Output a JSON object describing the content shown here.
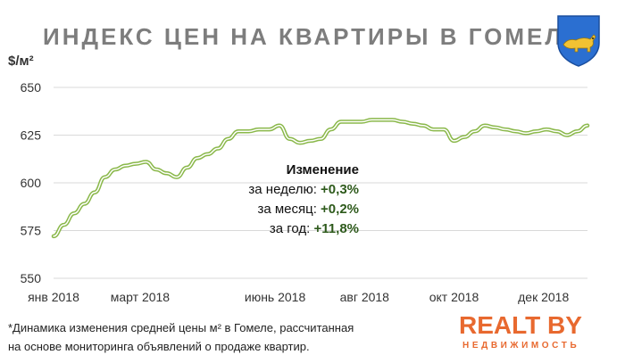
{
  "title": "ИНДЕКС ЦЕН НА КВАРТИРЫ В ГОМЕЛЕ",
  "y_unit": "$/м²",
  "annotation": {
    "heading": "Изменение",
    "rows": [
      {
        "label": "за неделю:",
        "value": "+0,3%"
      },
      {
        "label": "за месяц:",
        "value": "+0,2%"
      },
      {
        "label": "за год:",
        "value": "+11,8%"
      }
    ]
  },
  "footnote": {
    "line1": "*Динамика изменения  средней цены м² в Гомеле, рассчитанная",
    "line2": "на основе  мониторинга  объявлений  о продаже квартир."
  },
  "logo": {
    "main": "REALT BY",
    "sub": "НЕДВИЖИМОСТЬ"
  },
  "colors": {
    "line": "#8ab84a",
    "line_inner": "#ffffff",
    "grid": "#d9d9d9",
    "accent": "#e8692f",
    "value_text": "#2e5a1c"
  },
  "icons": [
    "gomel-coat-of-arms-icon"
  ],
  "chart_data": {
    "type": "line",
    "title": "ИНДЕКС ЦЕН НА КВАРТИРЫ В ГОМЕЛЕ",
    "ylabel": "$/м²",
    "xlabel": "",
    "ylim": [
      550,
      650
    ],
    "yticks": [
      550,
      575,
      600,
      625,
      650
    ],
    "xlim": [
      "2018-01-01",
      "2018-12-31"
    ],
    "xtick_labels": [
      {
        "date": "2018-01-01",
        "label": "янв 2018"
      },
      {
        "date": "2018-03-01",
        "label": "март 2018"
      },
      {
        "date": "2018-06-01",
        "label": "июнь 2018"
      },
      {
        "date": "2018-08-01",
        "label": "авг 2018"
      },
      {
        "date": "2018-10-01",
        "label": "окт 2018"
      },
      {
        "date": "2018-12-01",
        "label": "дек 2018"
      }
    ],
    "grid": true,
    "series": [
      {
        "x": [
          "2018-01-01",
          "2018-01-08",
          "2018-01-15",
          "2018-01-22",
          "2018-01-29",
          "2018-02-05",
          "2018-02-12",
          "2018-02-19",
          "2018-02-26",
          "2018-03-05",
          "2018-03-12",
          "2018-03-19",
          "2018-03-26",
          "2018-04-02",
          "2018-04-09",
          "2018-04-16",
          "2018-04-23",
          "2018-04-30",
          "2018-05-07",
          "2018-05-14",
          "2018-05-21",
          "2018-05-28",
          "2018-06-04",
          "2018-06-11",
          "2018-06-18",
          "2018-06-25",
          "2018-07-02",
          "2018-07-09",
          "2018-07-16",
          "2018-07-23",
          "2018-07-30",
          "2018-08-06",
          "2018-08-13",
          "2018-08-20",
          "2018-08-27",
          "2018-09-03",
          "2018-09-10",
          "2018-09-17",
          "2018-09-24",
          "2018-10-01",
          "2018-10-08",
          "2018-10-15",
          "2018-10-22",
          "2018-10-29",
          "2018-11-05",
          "2018-11-12",
          "2018-11-19",
          "2018-11-26",
          "2018-12-03",
          "2018-12-10",
          "2018-12-17",
          "2018-12-24",
          "2018-12-31"
        ],
        "values": [
          572,
          578,
          584,
          589,
          595,
          603,
          607,
          609,
          610,
          611,
          607,
          605,
          603,
          608,
          613,
          615,
          618,
          623,
          627,
          627,
          628,
          628,
          630,
          623,
          621,
          622,
          623,
          628,
          632,
          632,
          632,
          633,
          633,
          633,
          632,
          631,
          630,
          628,
          628,
          622,
          624,
          627,
          630,
          629,
          628,
          627,
          626,
          627,
          628,
          627,
          625,
          627,
          630
        ]
      }
    ]
  }
}
